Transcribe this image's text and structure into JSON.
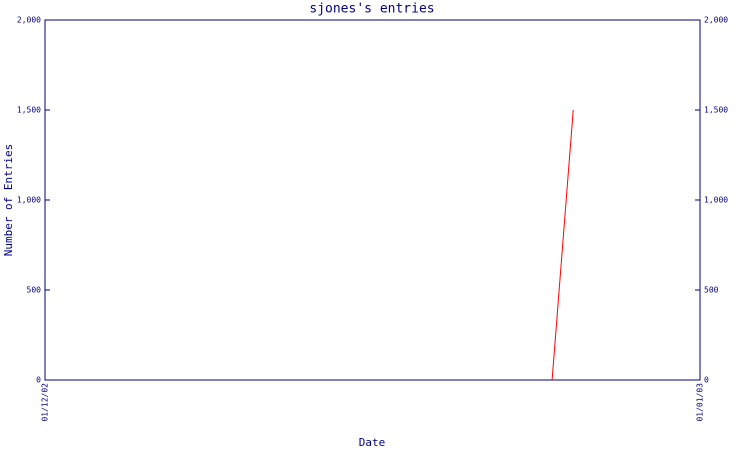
{
  "chart_data": {
    "type": "line",
    "title": "sjones's entries",
    "x_label": "Date",
    "y_label": "Number of Entries",
    "x": [
      "25/12/02",
      "26/12/02"
    ],
    "xlim": [
      "01/12/02",
      "01/01/03"
    ],
    "xticks": [
      "01/12/02",
      "01/01/03"
    ],
    "series": [
      {
        "color": "#ff0000",
        "values": [
          0,
          1500
        ]
      }
    ],
    "ylim": [
      0,
      2000
    ],
    "yticks": [
      0,
      500,
      {
        "value": 1000,
        "label": "1,000"
      },
      {
        "value": 1500,
        "label": "1,500"
      },
      {
        "value": 2000,
        "label": "2,000"
      }
    ],
    "axis_color": "#000080",
    "right_axis": true
  }
}
